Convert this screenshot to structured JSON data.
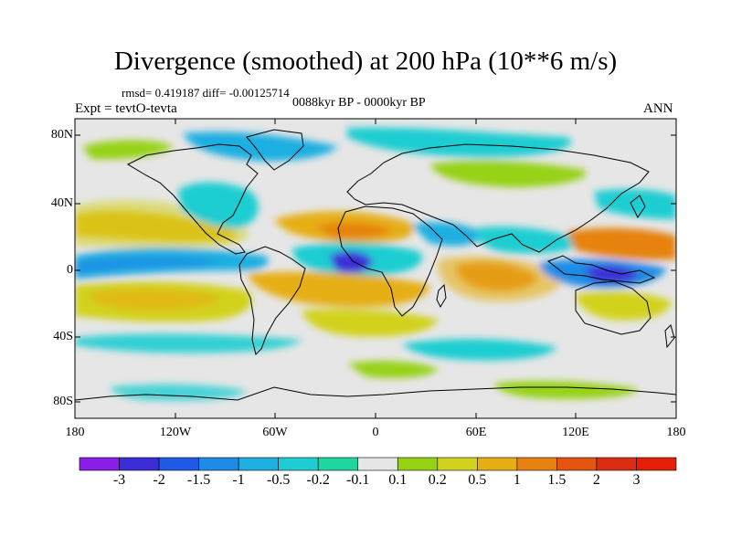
{
  "title": "Divergence (smoothed) at 200 hPa (10**6 m/s)",
  "stats": "rmsd= 0.419187 diff= -0.00125714",
  "experiment": "Expt = tevtO-tevta",
  "period": "0088kyr BP - 0000kyr BP",
  "season": "ANN",
  "lat_labels": [
    "80N",
    "40N",
    "0",
    "40S",
    "80S"
  ],
  "lon_labels": [
    "180",
    "120W",
    "60W",
    "0",
    "60E",
    "120E",
    "180"
  ],
  "colorbar": {
    "labels": [
      "-3",
      "-2",
      "-1.5",
      "-1",
      "-0.5",
      "-0.2",
      "-0.1",
      "0.1",
      "0.2",
      "0.5",
      "1",
      "1.5",
      "2",
      "3"
    ],
    "colors": [
      "#8a1ee6",
      "#3c2ed7",
      "#1e5ae6",
      "#1e8ce6",
      "#1eafe1",
      "#1ecdd2",
      "#1ed7a0",
      "#e6e6e6",
      "#96d214",
      "#d2d21e",
      "#e6af14",
      "#e6820f",
      "#e6550f",
      "#dc2d14",
      "#e61e0a"
    ]
  },
  "background_color": "#e6e6e6",
  "coastline_color": "#000000"
}
